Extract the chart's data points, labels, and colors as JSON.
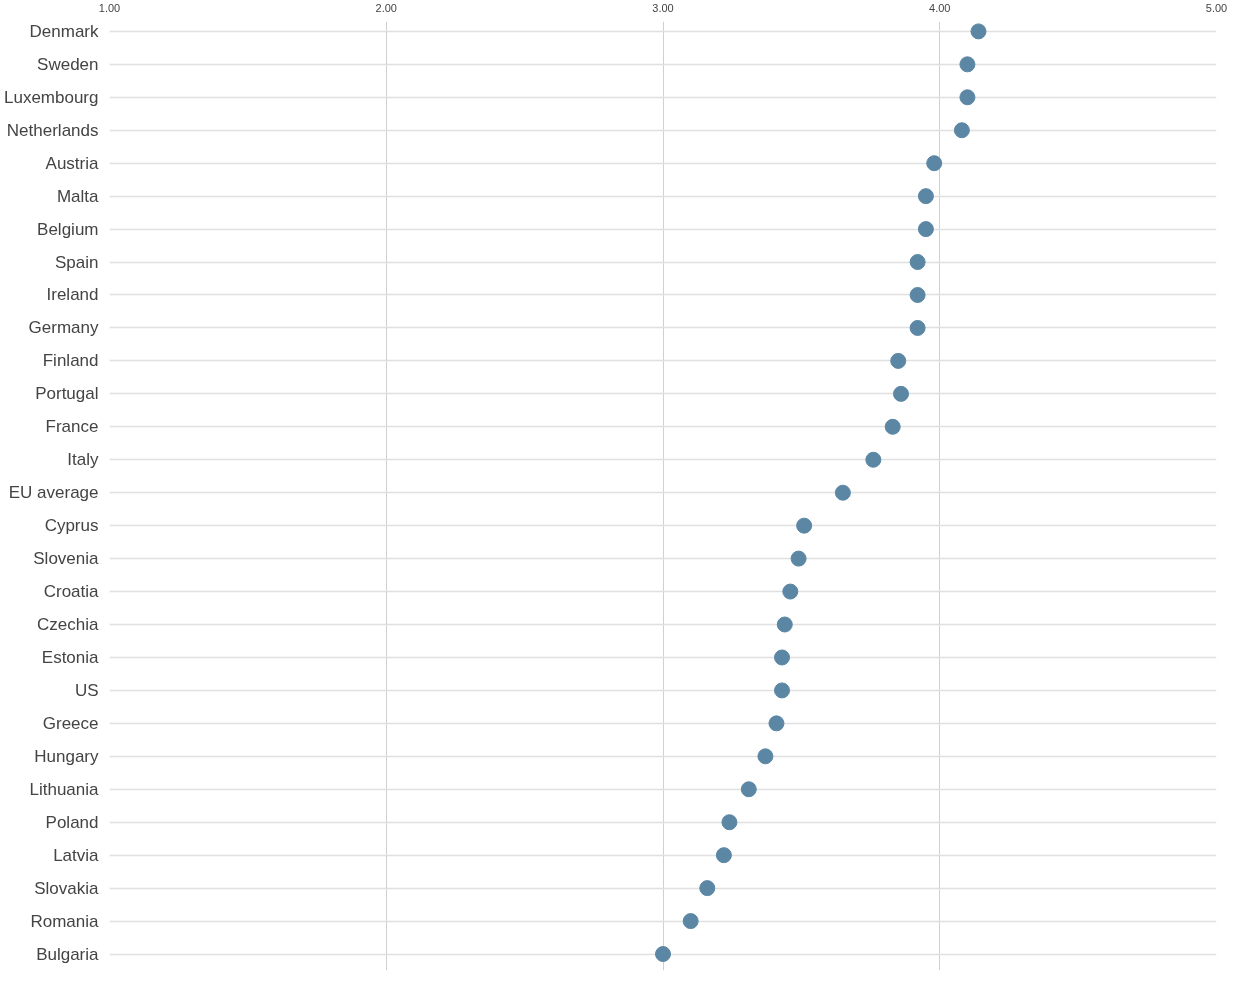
{
  "chart_data": {
    "type": "scatter",
    "orientation": "horizontal",
    "categories": [
      "Denmark",
      "Sweden",
      "Luxembourg",
      "Netherlands",
      "Austria",
      "Malta",
      "Belgium",
      "Spain",
      "Ireland",
      "Germany",
      "Finland",
      "Portugal",
      "France",
      "Italy",
      "EU average",
      "Cyprus",
      "Slovenia",
      "Croatia",
      "Czechia",
      "Estonia",
      "US",
      "Greece",
      "Hungary",
      "Lithuania",
      "Poland",
      "Latvia",
      "Slovakia",
      "Romania",
      "Bulgaria"
    ],
    "series": [
      {
        "color": "#5b87a5",
        "values": [
          4.14,
          4.1,
          4.1,
          4.08,
          3.98,
          3.95,
          3.95,
          3.92,
          3.92,
          3.92,
          3.85,
          3.86,
          3.83,
          3.76,
          3.65,
          3.51,
          3.49,
          3.46,
          3.44,
          3.43,
          3.43,
          3.41,
          3.37,
          3.31,
          3.24,
          3.22,
          3.16,
          3.1,
          3.0
        ]
      }
    ],
    "xlim": [
      1,
      5
    ],
    "xticks": [
      {
        "value": 1,
        "label": "1.00"
      },
      {
        "value": 2,
        "label": "2.00"
      },
      {
        "value": 3,
        "label": "3.00"
      },
      {
        "value": 4,
        "label": "4.00"
      },
      {
        "value": 5,
        "label": "5.00"
      }
    ],
    "grid": true,
    "marker": "circle"
  }
}
